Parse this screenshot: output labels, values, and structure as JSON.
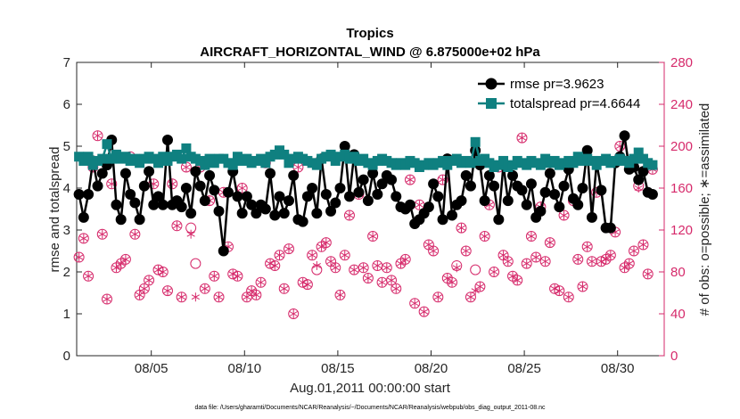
{
  "chart_data": {
    "type": "line",
    "title": "Tropics",
    "subtitle": "AIRCRAFT_HORIZONTAL_WIND @ 6.875000e+02 hPa",
    "xlabel": "Aug.01,2011 00:00:00 start",
    "ylabel": "rmse and totalspread",
    "ylabel_right": "# of obs: o=possible; ∗=assimilated",
    "footnote": "data file: /Users/gharamti/Documents/NCAR/Reanalysis/~/Documents/NCAR/Reanalysis/webpub/obs_diag_output_2011-08.nc",
    "xlim": [
      1,
      32.5
    ],
    "ylim": [
      0,
      7
    ],
    "ylim_right": [
      0,
      280
    ],
    "x_ticks": [
      5,
      10,
      15,
      20,
      25,
      30
    ],
    "x_tick_labels": [
      "08/05",
      "08/10",
      "08/15",
      "08/20",
      "08/25",
      "08/30"
    ],
    "y_ticks": [
      0,
      1,
      2,
      3,
      4,
      5,
      6,
      7
    ],
    "y_tick_labels": [
      "0",
      "1",
      "2",
      "3",
      "4",
      "5",
      "6",
      "7"
    ],
    "y_ticks_right": [
      0,
      40,
      80,
      120,
      160,
      200,
      240,
      280
    ],
    "y_tick_labels_right": [
      "0",
      "40",
      "80",
      "120",
      "160",
      "200",
      "240",
      "280"
    ],
    "colors": {
      "rmse": "#000000",
      "totalspread": "#0f8080",
      "obs": "#d62a6b"
    },
    "series": [
      {
        "name": "rmse",
        "legend": "rmse pr=3.9623",
        "x": [
          1.125,
          1.375,
          1.625,
          1.875,
          2.125,
          2.375,
          2.625,
          2.875,
          3.125,
          3.375,
          3.625,
          3.875,
          4.125,
          4.375,
          4.625,
          4.875,
          5.125,
          5.375,
          5.625,
          5.875,
          6.125,
          6.375,
          6.625,
          6.875,
          7.125,
          7.375,
          7.625,
          7.875,
          8.125,
          8.375,
          8.625,
          8.875,
          9.125,
          9.375,
          9.625,
          9.875,
          10.125,
          10.375,
          10.625,
          10.875,
          11.125,
          11.375,
          11.625,
          11.875,
          12.125,
          12.375,
          12.625,
          12.875,
          13.125,
          13.375,
          13.625,
          13.875,
          14.125,
          14.375,
          14.625,
          14.875,
          15.125,
          15.375,
          15.625,
          15.875,
          16.125,
          16.375,
          16.625,
          16.875,
          17.125,
          17.375,
          17.625,
          17.875,
          18.125,
          18.375,
          18.625,
          18.875,
          19.125,
          19.375,
          19.625,
          19.875,
          20.125,
          20.375,
          20.625,
          20.875,
          21.125,
          21.375,
          21.625,
          21.875,
          22.125,
          22.375,
          22.625,
          22.875,
          23.125,
          23.375,
          23.625,
          23.875,
          24.125,
          24.375,
          24.625,
          24.875,
          25.125,
          25.375,
          25.625,
          25.875,
          26.125,
          26.375,
          26.625,
          26.875,
          27.125,
          27.375,
          27.625,
          27.875,
          28.125,
          28.375,
          28.625,
          28.875,
          29.125,
          29.375,
          29.625,
          29.875,
          30.125,
          30.375,
          30.625,
          30.875,
          31.125,
          31.375,
          31.625,
          31.875
        ],
        "values": [
          3.85,
          3.3,
          3.85,
          4.65,
          4.05,
          4.35,
          4.55,
          5.15,
          3.6,
          3.25,
          4.35,
          3.85,
          3.65,
          3.25,
          4.05,
          4.4,
          3.6,
          3.8,
          3.6,
          5.15,
          3.6,
          3.7,
          3.55,
          4.0,
          3.4,
          4.4,
          4.05,
          3.7,
          4.3,
          3.95,
          3.45,
          2.5,
          3.9,
          4.4,
          3.8,
          3.4,
          3.8,
          3.6,
          3.4,
          3.6,
          3.5,
          4.35,
          3.35,
          3.8,
          3.4,
          3.7,
          4.3,
          3.25,
          3.2,
          3.8,
          4.0,
          3.4,
          4.7,
          3.85,
          3.45,
          3.65,
          4.0,
          5.0,
          3.8,
          4.8,
          3.9,
          4.2,
          3.7,
          4.35,
          3.85,
          4.1,
          4.3,
          4.2,
          3.8,
          3.55,
          3.5,
          3.6,
          3.15,
          3.25,
          3.4,
          3.55,
          4.1,
          3.8,
          3.25,
          4.7,
          3.35,
          3.6,
          3.7,
          4.3,
          4.05,
          4.9,
          4.55,
          3.7,
          4.3,
          4.05,
          3.25,
          4.55,
          3.7,
          4.3,
          4.05,
          3.95,
          3.6,
          4.1,
          3.3,
          3.45,
          3.9,
          4.35,
          3.85,
          3.55,
          4.05,
          4.45,
          3.75,
          3.6,
          4.0,
          4.9,
          3.3,
          4.6,
          3.95,
          3.05,
          3.05,
          4.6,
          4.75,
          5.25,
          4.45,
          4.5,
          4.2,
          4.4,
          3.9,
          3.85
        ]
      },
      {
        "name": "totalspread",
        "legend": "totalspread pr=4.6644",
        "x": [
          1.125,
          1.375,
          1.625,
          1.875,
          2.125,
          2.375,
          2.625,
          2.875,
          3.125,
          3.375,
          3.625,
          3.875,
          4.125,
          4.375,
          4.625,
          4.875,
          5.125,
          5.375,
          5.625,
          5.875,
          6.125,
          6.375,
          6.625,
          6.875,
          7.125,
          7.375,
          7.625,
          7.875,
          8.125,
          8.375,
          8.625,
          8.875,
          9.125,
          9.375,
          9.625,
          9.875,
          10.125,
          10.375,
          10.625,
          10.875,
          11.125,
          11.375,
          11.625,
          11.875,
          12.125,
          12.375,
          12.625,
          12.875,
          13.125,
          13.375,
          13.625,
          13.875,
          14.125,
          14.375,
          14.625,
          14.875,
          15.125,
          15.375,
          15.625,
          15.875,
          16.125,
          16.375,
          16.625,
          16.875,
          17.125,
          17.375,
          17.625,
          17.875,
          18.125,
          18.375,
          18.625,
          18.875,
          19.125,
          19.375,
          19.625,
          19.875,
          20.125,
          20.375,
          20.625,
          20.875,
          21.125,
          21.375,
          21.625,
          21.875,
          22.125,
          22.375,
          22.625,
          22.875,
          23.125,
          23.375,
          23.625,
          23.875,
          24.125,
          24.375,
          24.625,
          24.875,
          25.125,
          25.375,
          25.625,
          25.875,
          26.125,
          26.375,
          26.625,
          26.875,
          27.125,
          27.375,
          27.625,
          27.875,
          28.125,
          28.375,
          28.625,
          28.875,
          29.125,
          29.375,
          29.625,
          29.875,
          30.125,
          30.375,
          30.625,
          30.875,
          31.125,
          31.375,
          31.625,
          31.875
        ],
        "values": [
          4.75,
          4.65,
          4.75,
          4.55,
          4.65,
          4.7,
          5.05,
          4.7,
          4.8,
          4.7,
          4.75,
          4.65,
          4.7,
          4.6,
          4.7,
          4.75,
          4.7,
          4.6,
          4.75,
          4.65,
          4.75,
          4.8,
          4.7,
          4.95,
          4.75,
          4.7,
          4.65,
          4.55,
          4.7,
          4.6,
          4.7,
          4.7,
          4.6,
          4.55,
          4.75,
          4.65,
          4.7,
          4.6,
          4.65,
          4.7,
          4.6,
          4.75,
          4.8,
          4.9,
          4.8,
          4.6,
          4.7,
          4.75,
          4.7,
          4.65,
          4.6,
          4.55,
          4.7,
          4.75,
          4.8,
          4.65,
          4.75,
          4.8,
          4.7,
          4.75,
          4.65,
          4.7,
          4.6,
          4.55,
          4.65,
          4.7,
          4.65,
          4.6,
          4.55,
          4.6,
          4.55,
          4.65,
          4.6,
          4.5,
          4.55,
          4.6,
          4.55,
          4.6,
          4.65,
          4.55,
          4.65,
          4.7,
          4.6,
          4.65,
          4.6,
          5.1,
          4.65,
          4.7,
          4.6,
          4.5,
          4.55,
          4.65,
          4.5,
          4.55,
          4.65,
          4.6,
          4.55,
          4.65,
          4.6,
          4.55,
          4.7,
          4.6,
          4.65,
          4.55,
          4.6,
          4.65,
          4.6,
          4.75,
          4.65,
          4.7,
          4.65,
          4.55,
          4.65,
          4.7,
          4.6,
          4.65,
          4.7,
          4.65,
          4.6,
          4.7,
          4.85,
          4.7,
          4.6,
          4.55
        ]
      },
      {
        "name": "obs_possible",
        "axis": "right",
        "marker": "circle",
        "x": [
          1.125,
          1.375,
          1.625,
          1.875,
          2.125,
          2.375,
          2.625,
          2.875,
          3.125,
          3.375,
          3.625,
          3.875,
          4.125,
          4.375,
          4.625,
          4.875,
          5.125,
          5.375,
          5.625,
          5.875,
          6.125,
          6.375,
          6.625,
          6.875,
          7.125,
          7.375,
          7.625,
          7.875,
          8.125,
          8.375,
          8.625,
          8.875,
          9.125,
          9.375,
          9.625,
          9.875,
          10.125,
          10.375,
          10.625,
          10.875,
          11.125,
          11.375,
          11.625,
          11.875,
          12.125,
          12.375,
          12.625,
          12.875,
          13.125,
          13.375,
          13.625,
          13.875,
          14.125,
          14.375,
          14.625,
          14.875,
          15.125,
          15.375,
          15.625,
          15.875,
          16.125,
          16.375,
          16.625,
          16.875,
          17.125,
          17.375,
          17.625,
          17.875,
          18.125,
          18.375,
          18.625,
          18.875,
          19.125,
          19.375,
          19.625,
          19.875,
          20.125,
          20.375,
          20.625,
          20.875,
          21.125,
          21.375,
          21.625,
          21.875,
          22.125,
          22.375,
          22.625,
          22.875,
          23.125,
          23.375,
          23.625,
          23.875,
          24.125,
          24.375,
          24.625,
          24.875,
          25.125,
          25.375,
          25.625,
          25.875,
          26.125,
          26.375,
          26.625,
          26.875,
          27.125,
          27.375,
          27.625,
          27.875,
          28.125,
          28.375,
          28.625,
          28.875,
          29.125,
          29.375,
          29.625,
          29.875,
          30.125,
          30.375,
          30.625,
          30.875,
          31.125,
          31.375,
          31.625,
          31.875
        ],
        "values": [
          94,
          112,
          76,
          180,
          210,
          116,
          54,
          164,
          84,
          88,
          92,
          190,
          116,
          58,
          64,
          72,
          164,
          82,
          80,
          62,
          164,
          124,
          56,
          180,
          122,
          88,
          180,
          64,
          148,
          76,
          56,
          156,
          104,
          78,
          76,
          160,
          56,
          62,
          58,
          70,
          184,
          88,
          86,
          96,
          64,
          102,
          40,
          180,
          70,
          68,
          96,
          82,
          104,
          108,
          90,
          84,
          58,
          96,
          134,
          82,
          154,
          84,
          74,
          114,
          86,
          70,
          84,
          72,
          64,
          88,
          92,
          168,
          50,
          144,
          42,
          106,
          100,
          56,
          168,
          74,
          70,
          86,
          122,
          100,
          56,
          82,
          66,
          114,
          144,
          80,
          180,
          96,
          90,
          76,
          72,
          208,
          88,
          114,
          94,
          142,
          90,
          108,
          64,
          62,
          134,
          56,
          148,
          92,
          66,
          104,
          90,
          156,
          90,
          92,
          96,
          118,
          200,
          84,
          88,
          100,
          162,
          106,
          78,
          178
        ]
      },
      {
        "name": "obs_assimilated",
        "axis": "right",
        "marker": "asterisk",
        "x": [
          1.125,
          1.375,
          1.625,
          1.875,
          2.125,
          2.375,
          2.625,
          2.875,
          3.125,
          3.375,
          3.625,
          3.875,
          4.125,
          4.375,
          4.625,
          4.875,
          5.125,
          5.375,
          5.625,
          5.875,
          6.125,
          6.375,
          6.625,
          6.875,
          7.125,
          7.375,
          7.625,
          7.875,
          8.125,
          8.375,
          8.625,
          8.875,
          9.125,
          9.375,
          9.625,
          9.875,
          10.125,
          10.375,
          10.625,
          10.875,
          11.125,
          11.375,
          11.625,
          11.875,
          12.125,
          12.375,
          12.625,
          12.875,
          13.125,
          13.375,
          13.625,
          13.875,
          14.125,
          14.375,
          14.625,
          14.875,
          15.125,
          15.375,
          15.625,
          15.875,
          16.125,
          16.375,
          16.625,
          16.875,
          17.125,
          17.375,
          17.625,
          17.875,
          18.125,
          18.375,
          18.625,
          18.875,
          19.125,
          19.375,
          19.625,
          19.875,
          20.125,
          20.375,
          20.625,
          20.875,
          21.125,
          21.375,
          21.625,
          21.875,
          22.125,
          22.375,
          22.625,
          22.875,
          23.125,
          23.375,
          23.625,
          23.875,
          24.125,
          24.375,
          24.625,
          24.875,
          25.125,
          25.375,
          25.625,
          25.875,
          26.125,
          26.375,
          26.625,
          26.875,
          27.125,
          27.375,
          27.625,
          27.875,
          28.125,
          28.375,
          28.625,
          28.875,
          29.125,
          29.375,
          29.625,
          29.875,
          30.125,
          30.375,
          30.625,
          30.875,
          31.125,
          31.375,
          31.625,
          31.875
        ],
        "values": [
          94,
          112,
          76,
          180,
          210,
          116,
          54,
          164,
          84,
          88,
          92,
          190,
          116,
          58,
          64,
          72,
          164,
          82,
          80,
          62,
          164,
          124,
          56,
          180,
          116,
          56,
          180,
          64,
          148,
          76,
          56,
          156,
          104,
          78,
          76,
          160,
          56,
          62,
          58,
          70,
          184,
          88,
          86,
          96,
          64,
          102,
          40,
          180,
          70,
          68,
          96,
          86,
          104,
          108,
          90,
          84,
          58,
          96,
          134,
          82,
          154,
          84,
          74,
          114,
          86,
          70,
          84,
          72,
          64,
          88,
          92,
          168,
          50,
          144,
          42,
          106,
          100,
          56,
          168,
          74,
          70,
          84,
          122,
          100,
          56,
          62,
          66,
          114,
          144,
          80,
          180,
          96,
          90,
          76,
          72,
          208,
          88,
          114,
          94,
          142,
          90,
          108,
          64,
          62,
          134,
          56,
          148,
          92,
          66,
          104,
          90,
          156,
          90,
          92,
          96,
          118,
          200,
          84,
          88,
          100,
          160,
          106,
          78,
          178
        ]
      }
    ]
  }
}
